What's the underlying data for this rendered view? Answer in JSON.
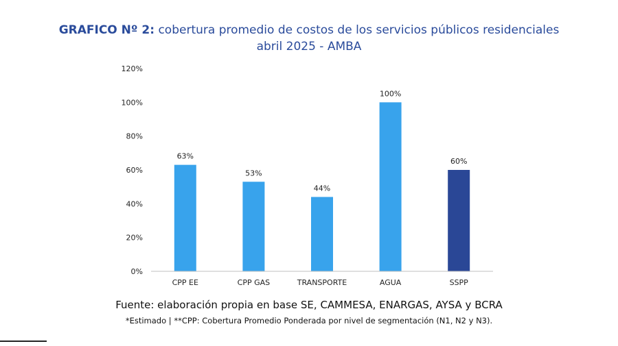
{
  "header": {
    "title_prefix": "GRAFICO Nº 2:",
    "title_main": "cobertura promedio de costos de los servicios públicos residenciales",
    "subtitle": "abril 2025 - AMBA"
  },
  "chart_data": {
    "type": "bar",
    "title": "GRAFICO Nº 2: cobertura promedio de costos de los servicios públicos residenciales",
    "subtitle": "abril 2025 - AMBA",
    "categories": [
      "CPP EE",
      "CPP GAS",
      "TRANSPORTE",
      "AGUA",
      "SSPP"
    ],
    "values": [
      63,
      53,
      44,
      100,
      60
    ],
    "value_labels": [
      "63%",
      "53%",
      "44%",
      "100%",
      "60%"
    ],
    "bar_colors": [
      "#38a3ec",
      "#38a3ec",
      "#38a3ec",
      "#38a3ec",
      "#2a4796"
    ],
    "y_ticks": [
      0,
      20,
      40,
      60,
      80,
      100,
      120
    ],
    "y_tick_labels": [
      "0%",
      "20%",
      "40%",
      "60%",
      "80%",
      "100%",
      "120%"
    ],
    "ylim": [
      0,
      120
    ],
    "xlabel": "",
    "ylabel": "",
    "grid": false
  },
  "footer": {
    "source": "Fuente: elaboración propia en base SE, CAMMESA, ENARGAS, AYSA y BCRA",
    "note": "*Estimado | **CPP: Cobertura Promedio Ponderada por nivel de segmentación (N1, N2 y N3)."
  },
  "colors": {
    "title": "#2a4b9b",
    "bar": "#38a3ec",
    "bar_highlight": "#2a4796"
  }
}
